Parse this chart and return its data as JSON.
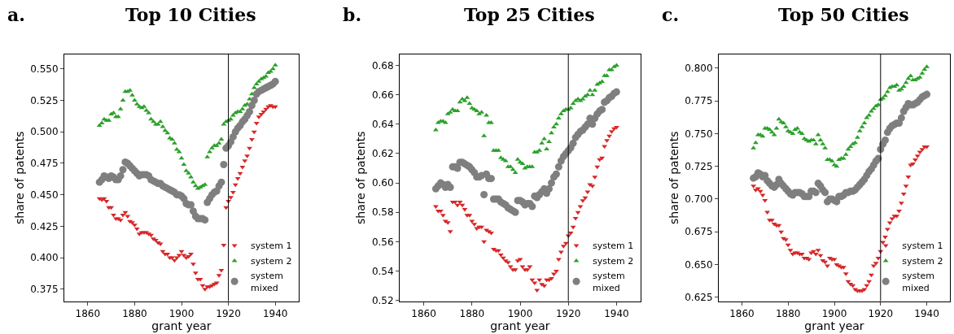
{
  "chart_data": [
    {
      "type": "scatter",
      "title": "Top 10 Cities",
      "annotations": [
        "a."
      ],
      "xlabel": "grant year",
      "ylabel": "share of patents",
      "xlim": [
        1850,
        1950
      ],
      "xticks": [
        1860,
        1880,
        1900,
        1920,
        1940
      ],
      "ylim": [
        0.3655,
        0.5615
      ],
      "yticks": [
        0.375,
        {
          "value": 0.4,
          "label": "0.400"
        },
        0.425,
        {
          "value": 0.45,
          "label": "0.450"
        },
        0.475,
        {
          "value": 0.5,
          "label": "0.500"
        },
        0.525,
        {
          "value": 0.55,
          "label": "0.550"
        }
      ],
      "legend": "bottom right",
      "ref_lines": [
        {
          "axis": "x",
          "value": 1920,
          "color": "#000000"
        }
      ],
      "x": [
        1865,
        1866,
        1867,
        1868,
        1869,
        1870,
        1871,
        1872,
        1873,
        1874,
        1875,
        1876,
        1877,
        1878,
        1879,
        1880,
        1881,
        1882,
        1883,
        1884,
        1885,
        1886,
        1887,
        1888,
        1889,
        1890,
        1891,
        1892,
        1893,
        1894,
        1895,
        1896,
        1897,
        1898,
        1899,
        1900,
        1901,
        1902,
        1903,
        1904,
        1905,
        1906,
        1907,
        1908,
        1909,
        1910,
        1911,
        1912,
        1913,
        1914,
        1915,
        1916,
        1917,
        1918,
        1919,
        1920,
        1921,
        1922,
        1923,
        1924,
        1925,
        1926,
        1927,
        1928,
        1929,
        1930,
        1931,
        1932,
        1933,
        1934,
        1935,
        1936,
        1937,
        1938,
        1939,
        1940
      ],
      "series": [
        {
          "name": "system 1",
          "color": "#d62728",
          "marker": "triangle_down",
          "values": [
            0.447,
            0.446,
            0.447,
            0.445,
            0.44,
            0.44,
            0.434,
            0.431,
            0.431,
            0.43,
            0.434,
            0.436,
            0.433,
            0.429,
            0.428,
            0.426,
            0.423,
            0.419,
            0.42,
            0.42,
            0.42,
            0.419,
            0.418,
            0.415,
            0.414,
            0.412,
            0.411,
            0.405,
            0.403,
            0.403,
            0.4,
            0.4,
            0.398,
            0.4,
            0.402,
            0.405,
            0.402,
            0.4,
            0.401,
            0.403,
            0.395,
            0.388,
            0.383,
            0.383,
            0.378,
            0.375,
            0.377,
            0.377,
            0.378,
            0.379,
            0.38,
            0.386,
            0.39,
            0.41,
            0.44,
            0.445,
            0.448,
            0.452,
            0.458,
            0.463,
            0.467,
            0.472,
            0.477,
            0.481,
            0.487,
            0.494,
            0.5,
            0.507,
            0.512,
            0.514,
            0.516,
            0.518,
            0.52,
            0.521,
            0.52,
            0.52
          ]
        },
        {
          "name": "system 2",
          "color": "#2ca02c",
          "marker": "triangle",
          "values": [
            0.505,
            0.507,
            0.51,
            0.509,
            0.509,
            0.514,
            0.515,
            0.512,
            0.512,
            0.518,
            0.525,
            0.532,
            0.532,
            0.533,
            0.529,
            0.525,
            0.522,
            0.52,
            0.519,
            0.52,
            0.517,
            0.515,
            0.51,
            0.508,
            0.506,
            0.506,
            0.508,
            0.504,
            0.501,
            0.499,
            0.495,
            0.494,
            0.491,
            0.486,
            0.484,
            0.479,
            0.474,
            0.469,
            0.467,
            0.464,
            0.46,
            0.457,
            0.455,
            0.456,
            0.457,
            0.458,
            0.48,
            0.484,
            0.487,
            0.489,
            0.489,
            0.491,
            0.494,
            0.506,
            0.508,
            0.509,
            0.51,
            0.513,
            0.515,
            0.516,
            0.516,
            0.518,
            0.521,
            0.522,
            0.526,
            0.53,
            0.535,
            0.538,
            0.54,
            0.542,
            0.543,
            0.544,
            0.547,
            0.548,
            0.55,
            0.553
          ]
        },
        {
          "name": "system\nmixed",
          "color": "#7f7f7f",
          "marker": "circle",
          "values": [
            0.46,
            0.462,
            0.465,
            0.464,
            0.463,
            0.465,
            0.464,
            0.462,
            0.462,
            0.465,
            0.47,
            0.476,
            0.475,
            0.473,
            0.471,
            0.469,
            0.467,
            0.465,
            0.466,
            0.466,
            0.466,
            0.465,
            0.462,
            0.461,
            0.46,
            0.459,
            0.459,
            0.457,
            0.456,
            0.455,
            0.454,
            0.453,
            0.452,
            0.45,
            0.45,
            0.449,
            0.447,
            0.443,
            0.442,
            0.442,
            0.437,
            0.433,
            0.431,
            0.431,
            0.431,
            0.43,
            0.444,
            0.447,
            0.45,
            0.452,
            0.453,
            0.457,
            0.46,
            0.474,
            0.487,
            0.489,
            0.492,
            0.496,
            0.5,
            0.503,
            0.505,
            0.508,
            0.51,
            0.513,
            0.516,
            0.521,
            0.525,
            0.53,
            0.532,
            0.533,
            0.534,
            0.535,
            0.536,
            0.537,
            0.538,
            0.54
          ]
        }
      ]
    },
    {
      "type": "scatter",
      "title": "Top 25 Cities",
      "annotations": [
        "b."
      ],
      "xlabel": "grant year",
      "ylabel": "share of patents",
      "xlim": [
        1850,
        1950
      ],
      "xticks": [
        1860,
        1880,
        1900,
        1920,
        1940
      ],
      "ylim": [
        0.5195,
        0.6875
      ],
      "yticks": [
        0.52,
        0.54,
        0.56,
        0.58,
        {
          "value": 0.6,
          "label": "0.60"
        },
        0.62,
        0.64,
        0.66,
        0.68
      ],
      "legend": "bottom right",
      "ref_lines": [
        {
          "axis": "x",
          "value": 1920,
          "color": "#000000"
        }
      ],
      "x": [
        1865,
        1866,
        1867,
        1868,
        1869,
        1870,
        1871,
        1872,
        1873,
        1874,
        1875,
        1876,
        1877,
        1878,
        1879,
        1880,
        1881,
        1882,
        1883,
        1884,
        1885,
        1886,
        1887,
        1888,
        1889,
        1890,
        1891,
        1892,
        1893,
        1894,
        1895,
        1896,
        1897,
        1898,
        1899,
        1900,
        1901,
        1902,
        1903,
        1904,
        1905,
        1906,
        1907,
        1908,
        1909,
        1910,
        1911,
        1912,
        1913,
        1914,
        1915,
        1916,
        1917,
        1918,
        1919,
        1920,
        1921,
        1922,
        1923,
        1924,
        1925,
        1926,
        1927,
        1928,
        1929,
        1930,
        1931,
        1932,
        1933,
        1934,
        1935,
        1936,
        1937,
        1938,
        1939,
        1940
      ],
      "series": [
        {
          "name": "system 1",
          "color": "#d62728",
          "marker": "triangle_down",
          "values": [
            0.584,
            0.581,
            0.581,
            0.578,
            0.574,
            0.573,
            0.567,
            0.587,
            0.587,
            0.585,
            0.587,
            0.585,
            0.582,
            0.578,
            0.578,
            0.574,
            0.572,
            0.569,
            0.57,
            0.57,
            0.56,
            0.568,
            0.567,
            0.566,
            0.555,
            0.554,
            0.554,
            0.551,
            0.549,
            0.547,
            0.546,
            0.543,
            0.541,
            0.541,
            0.547,
            0.548,
            0.543,
            0.541,
            0.541,
            0.543,
            0.534,
            0.532,
            0.527,
            0.534,
            0.531,
            0.53,
            0.534,
            0.534,
            0.535,
            0.538,
            0.54,
            0.548,
            0.553,
            0.557,
            0.559,
            0.564,
            0.566,
            0.57,
            0.576,
            0.58,
            0.584,
            0.588,
            0.59,
            0.594,
            0.599,
            0.598,
            0.604,
            0.611,
            0.616,
            0.617,
            0.625,
            0.629,
            0.632,
            0.635,
            0.637,
            0.638
          ]
        },
        {
          "name": "system 2",
          "color": "#2ca02c",
          "marker": "triangle",
          "values": [
            0.636,
            0.641,
            0.642,
            0.642,
            0.641,
            0.647,
            0.648,
            0.65,
            0.649,
            0.649,
            0.655,
            0.657,
            0.656,
            0.658,
            0.654,
            0.651,
            0.65,
            0.649,
            0.647,
            0.648,
            0.632,
            0.646,
            0.641,
            0.641,
            0.622,
            0.622,
            0.622,
            0.617,
            0.616,
            0.615,
            0.611,
            0.611,
            0.609,
            0.607,
            0.616,
            0.614,
            0.613,
            0.61,
            0.611,
            0.611,
            0.611,
            0.621,
            0.621,
            0.622,
            0.627,
            0.63,
            0.623,
            0.628,
            0.634,
            0.638,
            0.64,
            0.644,
            0.647,
            0.649,
            0.65,
            0.65,
            0.651,
            0.654,
            0.656,
            0.657,
            0.656,
            0.657,
            0.659,
            0.66,
            0.663,
            0.66,
            0.663,
            0.667,
            0.668,
            0.669,
            0.673,
            0.673,
            0.677,
            0.677,
            0.679,
            0.68
          ]
        },
        {
          "name": "system\nmixed",
          "color": "#7f7f7f",
          "marker": "circle",
          "values": [
            0.596,
            0.598,
            0.6,
            0.599,
            0.597,
            0.599,
            0.597,
            0.611,
            0.611,
            0.61,
            0.614,
            0.614,
            0.613,
            0.612,
            0.611,
            0.609,
            0.607,
            0.604,
            0.604,
            0.605,
            0.592,
            0.606,
            0.603,
            0.603,
            0.589,
            0.589,
            0.589,
            0.587,
            0.586,
            0.585,
            0.583,
            0.582,
            0.581,
            0.58,
            0.588,
            0.588,
            0.587,
            0.585,
            0.586,
            0.586,
            0.584,
            0.591,
            0.59,
            0.592,
            0.594,
            0.596,
            0.593,
            0.596,
            0.6,
            0.604,
            0.606,
            0.611,
            0.615,
            0.618,
            0.62,
            0.622,
            0.624,
            0.627,
            0.631,
            0.633,
            0.635,
            0.636,
            0.638,
            0.64,
            0.644,
            0.64,
            0.644,
            0.647,
            0.649,
            0.65,
            0.655,
            0.656,
            0.658,
            0.659,
            0.661,
            0.662
          ]
        }
      ]
    },
    {
      "type": "scatter",
      "title": "Top 50 Cities",
      "annotations": [
        "c."
      ],
      "xlabel": "grant year",
      "ylabel": "share of patents",
      "xlim": [
        1850,
        1950
      ],
      "xticks": [
        1860,
        1880,
        1900,
        1920,
        1940
      ],
      "ylim": [
        0.622,
        0.8105
      ],
      "yticks": [
        0.625,
        {
          "value": 0.65,
          "label": "0.650"
        },
        0.675,
        {
          "value": 0.7,
          "label": "0.700"
        },
        0.725,
        {
          "value": 0.75,
          "label": "0.750"
        },
        0.775,
        {
          "value": 0.8,
          "label": "0.800"
        }
      ],
      "legend": "bottom right",
      "ref_lines": [
        {
          "axis": "x",
          "value": 1920,
          "color": "#000000"
        }
      ],
      "x": [
        1865,
        1866,
        1867,
        1868,
        1869,
        1870,
        1871,
        1872,
        1873,
        1874,
        1875,
        1876,
        1877,
        1878,
        1879,
        1880,
        1881,
        1882,
        1883,
        1884,
        1885,
        1886,
        1887,
        1888,
        1889,
        1890,
        1891,
        1892,
        1893,
        1894,
        1895,
        1896,
        1897,
        1898,
        1899,
        1900,
        1901,
        1902,
        1903,
        1904,
        1905,
        1906,
        1907,
        1908,
        1909,
        1910,
        1911,
        1912,
        1913,
        1914,
        1915,
        1916,
        1917,
        1918,
        1919,
        1920,
        1921,
        1922,
        1923,
        1924,
        1925,
        1926,
        1927,
        1928,
        1929,
        1930,
        1931,
        1932,
        1933,
        1934,
        1935,
        1936,
        1937,
        1938,
        1939,
        1940
      ],
      "series": [
        {
          "name": "system 1",
          "color": "#d62728",
          "marker": "triangle_down",
          "values": [
            0.71,
            0.707,
            0.708,
            0.706,
            0.703,
            0.699,
            0.69,
            0.684,
            0.684,
            0.681,
            0.68,
            0.68,
            0.675,
            0.67,
            0.669,
            0.665,
            0.661,
            0.658,
            0.659,
            0.659,
            0.658,
            0.658,
            0.655,
            0.655,
            0.654,
            0.659,
            0.66,
            0.658,
            0.661,
            0.657,
            0.653,
            0.652,
            0.649,
            0.655,
            0.654,
            0.654,
            0.65,
            0.649,
            0.648,
            0.648,
            0.643,
            0.637,
            0.635,
            0.634,
            0.631,
            0.63,
            0.63,
            0.63,
            0.631,
            0.634,
            0.637,
            0.642,
            0.649,
            0.651,
            0.655,
            0.66,
            0.667,
            0.671,
            0.677,
            0.682,
            0.685,
            0.687,
            0.687,
            0.691,
            0.697,
            0.704,
            0.71,
            0.717,
            0.726,
            0.727,
            0.73,
            0.733,
            0.736,
            0.738,
            0.74,
            0.74
          ]
        },
        {
          "name": "system 2",
          "color": "#2ca02c",
          "marker": "triangle",
          "values": [
            0.739,
            0.743,
            0.749,
            0.749,
            0.748,
            0.754,
            0.754,
            0.753,
            0.751,
            0.749,
            0.754,
            0.761,
            0.759,
            0.758,
            0.755,
            0.752,
            0.751,
            0.75,
            0.753,
            0.754,
            0.751,
            0.75,
            0.746,
            0.745,
            0.744,
            0.745,
            0.745,
            0.742,
            0.749,
            0.745,
            0.742,
            0.739,
            0.73,
            0.73,
            0.729,
            0.726,
            0.725,
            0.73,
            0.731,
            0.731,
            0.734,
            0.738,
            0.74,
            0.742,
            0.743,
            0.747,
            0.752,
            0.755,
            0.758,
            0.762,
            0.764,
            0.767,
            0.769,
            0.771,
            0.772,
            0.776,
            0.777,
            0.779,
            0.782,
            0.785,
            0.786,
            0.786,
            0.787,
            0.783,
            0.784,
            0.786,
            0.789,
            0.792,
            0.794,
            0.791,
            0.791,
            0.792,
            0.793,
            0.796,
            0.799,
            0.801
          ]
        },
        {
          "name": "system\nmixed",
          "color": "#7f7f7f",
          "marker": "circle",
          "values": [
            0.716,
            0.717,
            0.72,
            0.719,
            0.717,
            0.718,
            0.714,
            0.712,
            0.71,
            0.709,
            0.711,
            0.715,
            0.712,
            0.71,
            0.708,
            0.706,
            0.704,
            0.703,
            0.705,
            0.705,
            0.705,
            0.704,
            0.702,
            0.702,
            0.702,
            0.706,
            0.706,
            0.705,
            0.712,
            0.71,
            0.707,
            0.705,
            0.698,
            0.7,
            0.7,
            0.699,
            0.698,
            0.702,
            0.702,
            0.703,
            0.705,
            0.705,
            0.706,
            0.706,
            0.707,
            0.709,
            0.711,
            0.713,
            0.715,
            0.718,
            0.721,
            0.723,
            0.726,
            0.729,
            0.731,
            0.738,
            0.742,
            0.745,
            0.751,
            0.754,
            0.756,
            0.757,
            0.758,
            0.758,
            0.762,
            0.767,
            0.77,
            0.773,
            0.772,
            0.772,
            0.773,
            0.774,
            0.776,
            0.778,
            0.779,
            0.78
          ]
        }
      ]
    }
  ]
}
